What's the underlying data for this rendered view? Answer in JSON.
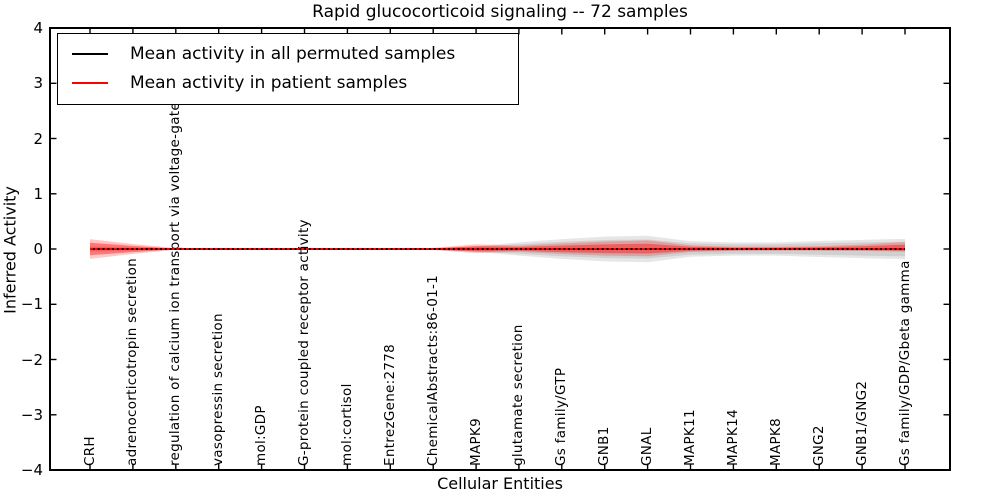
{
  "title": "Rapid glucocorticoid signaling -- 72 samples",
  "xlabel": "Cellular Entities",
  "ylabel": "Inferred Activity",
  "legend": {
    "items": [
      {
        "label": "Mean activity in all permuted samples",
        "color": "#000000"
      },
      {
        "label": "Mean activity in patient samples",
        "color": "#ff0000"
      }
    ]
  },
  "colors": {
    "permuted_line": "#000000",
    "patient_line": "#ff0000",
    "permuted_band": "rgba(130,130,130,0.20)",
    "permuted_band_inner": "rgba(130,130,130,0.22)",
    "patient_band": "rgba(255,0,0,0.22)",
    "patient_band_inner": "rgba(255,0,0,0.40)",
    "spine": "#000000",
    "background": "#ffffff"
  },
  "chart_data": {
    "type": "area",
    "title": "Rapid glucocorticoid signaling -- 72 samples",
    "xlabel": "Cellular Entities",
    "ylabel": "Inferred Activity",
    "ylim": [
      -4,
      4
    ],
    "ytick_values": [
      4,
      3,
      2,
      1,
      0,
      -1,
      -2,
      -3,
      -4
    ],
    "ytick_labels": [
      "4",
      "3",
      "2",
      "1",
      "0",
      "−1",
      "−2",
      "−3",
      "−4"
    ],
    "grid": false,
    "legend_position": "upper left",
    "categories": [
      "CRH",
      "adrenocorticotropin secretion",
      "regulation of calcium ion transport via voltage-gated channel",
      "vasopressin secretion",
      "mol:GDP",
      "G-protein coupled receptor activity",
      "mol:cortisol",
      "EntrezGene:2778",
      "ChemicalAbstracts:86-01-1",
      "MAPK9",
      "glutamate secretion",
      "Gs family/GTP",
      "GNB1",
      "GNAL",
      "MAPK11",
      "MAPK14",
      "MAPK8",
      "GNG2",
      "GNB1/GNG2",
      "Gs family/GDP/Gbeta gamma"
    ],
    "series": [
      {
        "name": "Mean activity in all permuted samples",
        "color": "#000000",
        "style": "solid",
        "values": [
          0,
          0,
          0,
          0,
          0,
          0,
          0,
          0,
          0,
          0,
          0,
          0,
          0,
          0,
          0,
          0,
          0,
          0,
          0,
          0
        ]
      },
      {
        "name": "Mean activity in patient samples",
        "color": "#ff0000",
        "style": "solid",
        "values": [
          0,
          0,
          0,
          0,
          0,
          0,
          0,
          0,
          0,
          0,
          0,
          0,
          0,
          0,
          0,
          0,
          0,
          0,
          0,
          0
        ]
      }
    ],
    "bands": {
      "permuted_halfwidth": [
        0.05,
        0.03,
        0.012,
        0.01,
        0.01,
        0.01,
        0.01,
        0.01,
        0.018,
        0.05,
        0.12,
        0.18,
        0.225,
        0.24,
        0.14,
        0.12,
        0.12,
        0.145,
        0.165,
        0.185
      ],
      "patient_up": [
        0.18,
        0.09,
        0.012,
        0.01,
        0.01,
        0.01,
        0.01,
        0.01,
        0.018,
        0.085,
        0.06,
        0.1,
        0.135,
        0.155,
        0.065,
        0.04,
        0.04,
        0.05,
        0.08,
        0.125
      ],
      "patient_down": [
        0.18,
        0.09,
        0.012,
        0.01,
        0.01,
        0.01,
        0.01,
        0.01,
        0.018,
        0.075,
        0.05,
        0.09,
        0.12,
        0.13,
        0.055,
        0.035,
        0.03,
        0.03,
        0.035,
        0.05
      ]
    }
  }
}
